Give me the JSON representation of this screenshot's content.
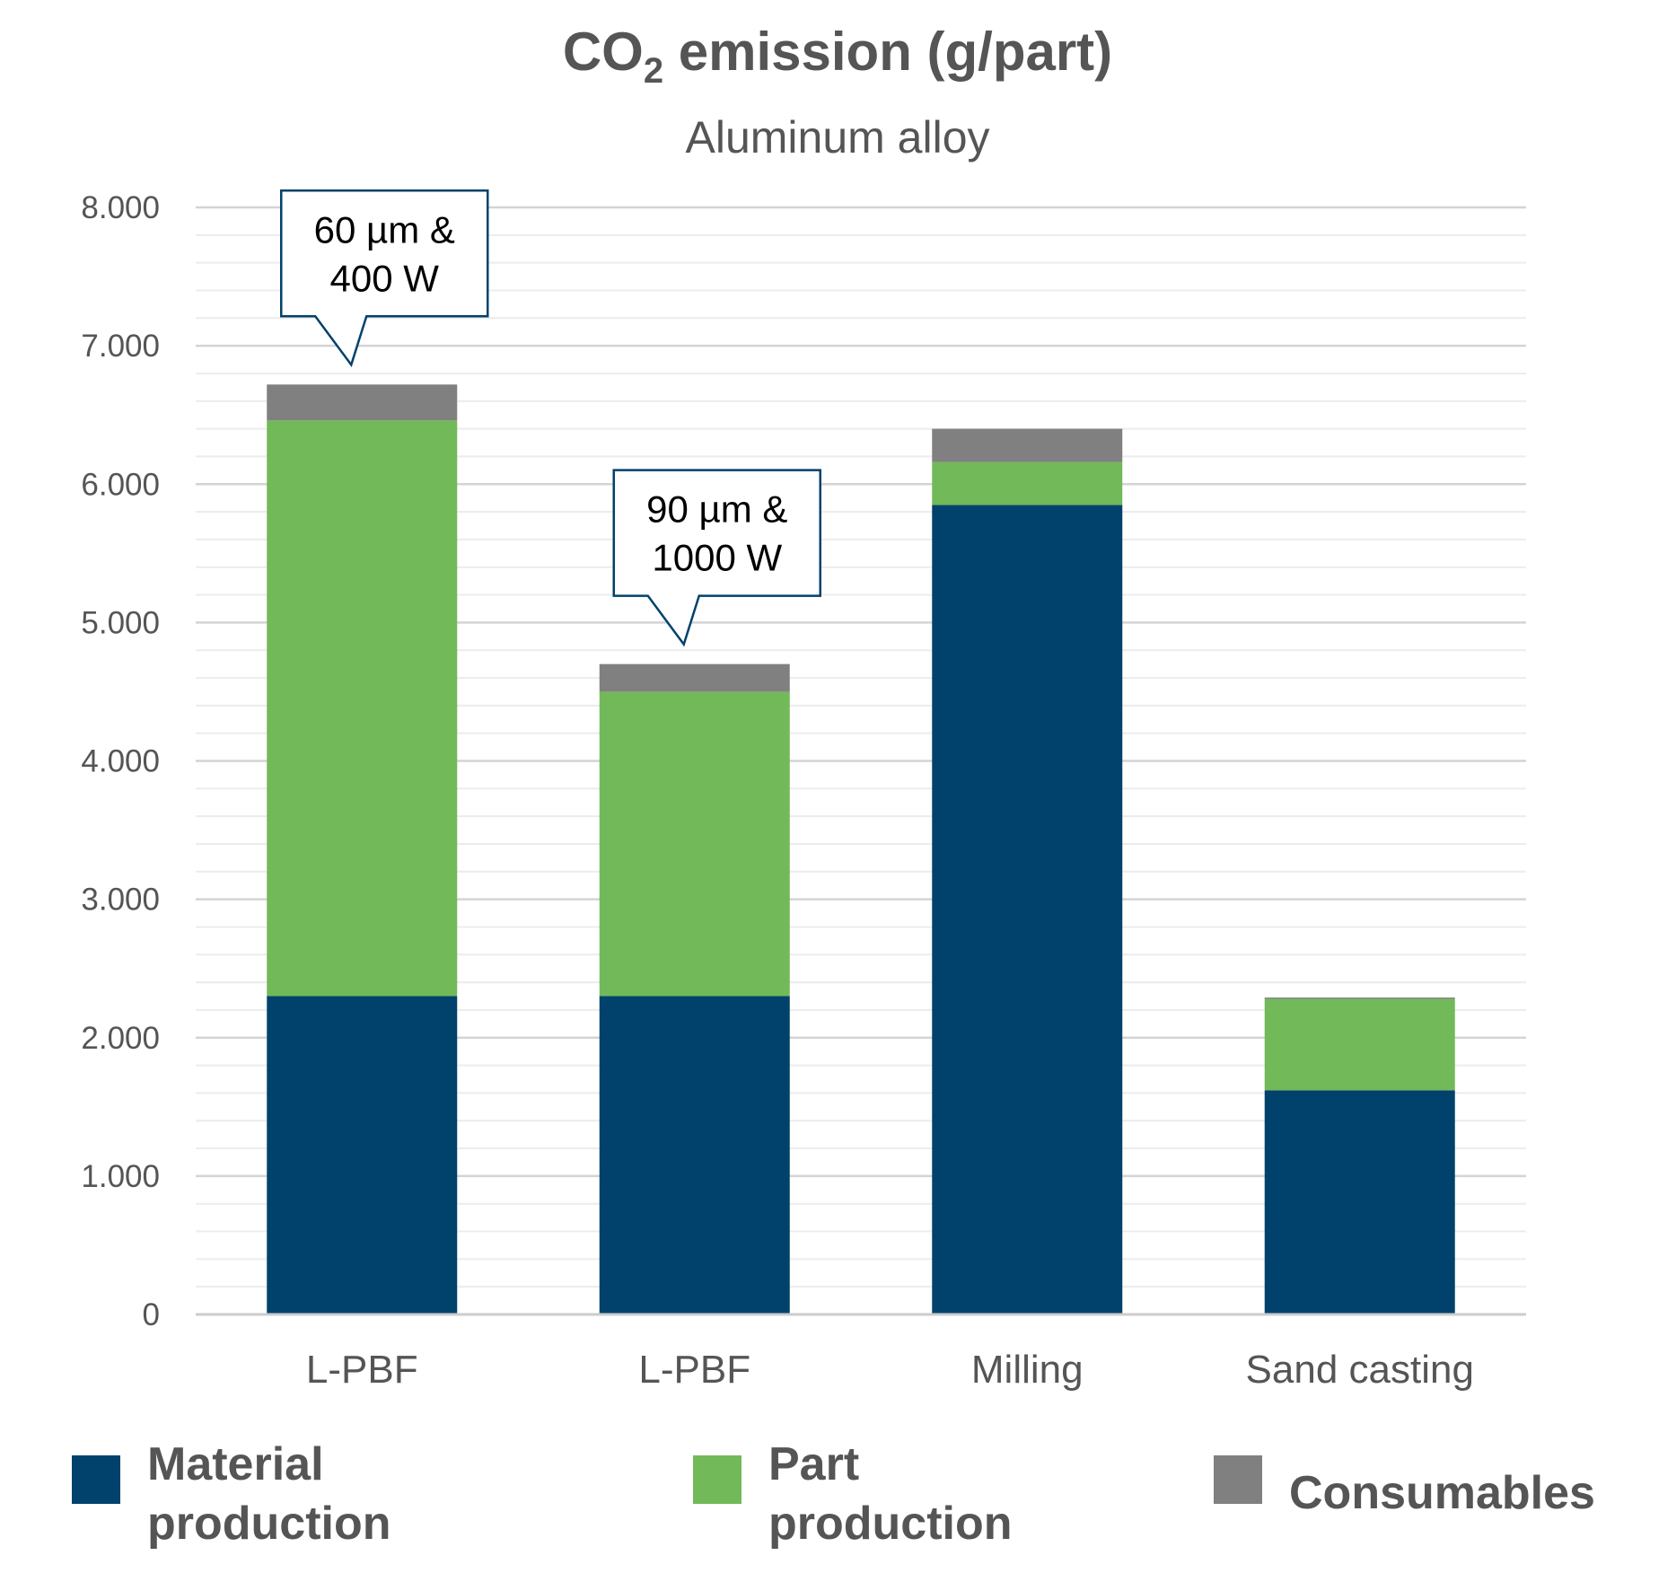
{
  "chart_data": {
    "type": "bar",
    "stacked": true,
    "title": "CO",
    "title_subscript": "2",
    "title_rest": " emission (g/part)",
    "subtitle": "Aluminum alloy",
    "categories": [
      "L-PBF",
      "L-PBF",
      "Milling",
      "Sand casting"
    ],
    "ylim": [
      0,
      8000
    ],
    "yticks": [
      0,
      1000,
      2000,
      3000,
      4000,
      5000,
      6000,
      7000,
      8000
    ],
    "ytick_labels": [
      "0",
      "1.000",
      "2.000",
      "3.000",
      "4.000",
      "5.000",
      "6.000",
      "7.000",
      "8.000"
    ],
    "grid": true,
    "legend_position": "bottom",
    "series": [
      {
        "name": "Material production",
        "color": "#00426b",
        "values": [
          2300,
          2300,
          5850,
          1620
        ]
      },
      {
        "name": "Part production",
        "color": "#72b95a",
        "values": [
          4160,
          2200,
          310,
          660
        ]
      },
      {
        "name": "Consumables",
        "color": "#808080",
        "values": [
          260,
          200,
          240,
          10
        ]
      }
    ],
    "annotations": [
      {
        "category_index": 0,
        "lines": [
          "60 µm &",
          "400 W"
        ]
      },
      {
        "category_index": 1,
        "lines": [
          "90 µm &",
          "1000 W"
        ]
      }
    ]
  },
  "legend": {
    "items": [
      {
        "lines": [
          "Material",
          "production"
        ],
        "color": "#00426b"
      },
      {
        "lines": [
          "Part",
          "production"
        ],
        "color": "#72b95a"
      },
      {
        "lines": [
          "Consumables"
        ],
        "color": "#808080"
      }
    ]
  }
}
